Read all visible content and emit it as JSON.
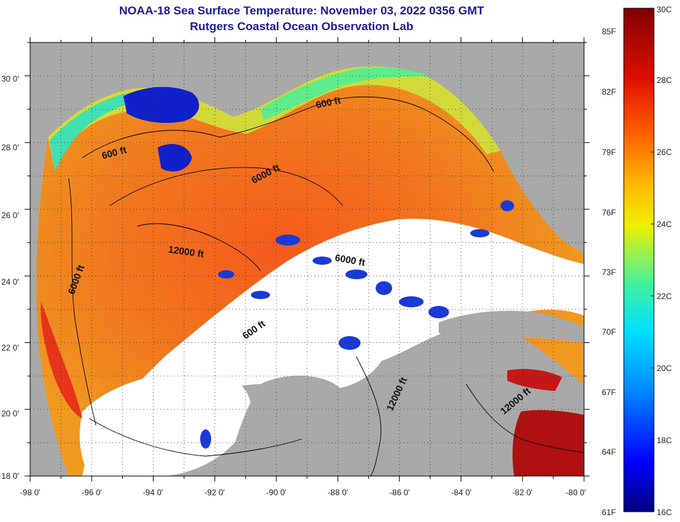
{
  "header": {
    "title": "NOAA-18 Sea Surface Temperature:  November 03, 2022 0356 GMT",
    "subtitle": "Rutgers Coastal Ocean Observation Lab"
  },
  "map": {
    "region": "Gulf of Mexico",
    "lon_range": [
      -98,
      -80
    ],
    "lat_range": [
      18,
      31
    ],
    "lon_ticks": [
      "-98 0'",
      "-96 0'",
      "-94 0'",
      "-92 0'",
      "-90 0'",
      "-88 0'",
      "-86 0'",
      "-84 0'",
      "-82 0'",
      "-80 0'"
    ],
    "lat_ticks": [
      "18 0'",
      "20 0'",
      "22 0'",
      "24 0'",
      "26 0'",
      "28 0'",
      "30 0'"
    ],
    "contour_labels": [
      "600 ft",
      "600 ft",
      "6000 ft",
      "12000 ft",
      "6000 ft",
      "6000 ft",
      "600 ft",
      "12000 ft",
      "12000 ft"
    ],
    "colors": {
      "land": "#a9a9a9",
      "cloud": "#ffffff",
      "warm": "#f0561e",
      "cool": "#1020c8"
    }
  },
  "colorbar": {
    "fahrenheit_labels": [
      "85F",
      "82F",
      "79F",
      "76F",
      "73F",
      "70F",
      "67F",
      "64F",
      "61F"
    ],
    "celsius_labels": [
      "30C",
      "28C",
      "26C",
      "24C",
      "22C",
      "20C",
      "18C",
      "16C"
    ],
    "range_c": [
      16,
      30
    ],
    "range_f": [
      61,
      85
    ],
    "stops": [
      "#000080",
      "#0000ff",
      "#0090ff",
      "#00e0ff",
      "#40f0a0",
      "#f0f000",
      "#ffb000",
      "#ff6000",
      "#e01000",
      "#800000"
    ]
  }
}
